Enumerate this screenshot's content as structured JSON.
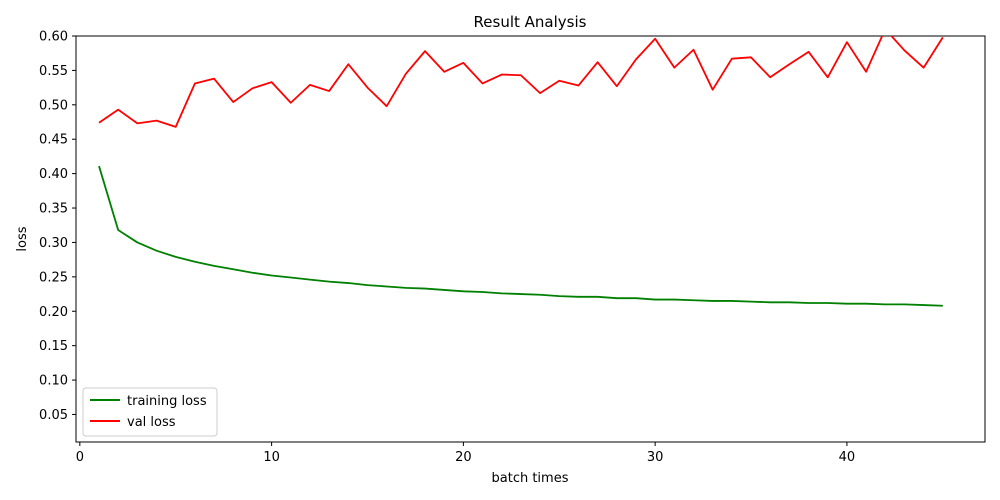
{
  "chart_data": {
    "type": "line",
    "title": "Result Analysis",
    "xlabel": "batch times",
    "ylabel": "loss",
    "xlim": [
      -0.2,
      47.2
    ],
    "ylim": [
      0.01,
      0.6
    ],
    "xticks": [
      0,
      10,
      20,
      30,
      40
    ],
    "xtick_labels": [
      "0",
      "10",
      "20",
      "30",
      "40"
    ],
    "yticks": [
      0.05,
      0.1,
      0.15,
      0.2,
      0.25,
      0.3,
      0.35,
      0.4,
      0.45,
      0.5,
      0.55,
      0.6
    ],
    "ytick_labels": [
      "0.05",
      "0.10",
      "0.15",
      "0.20",
      "0.25",
      "0.30",
      "0.35",
      "0.40",
      "0.45",
      "0.50",
      "0.55",
      "0.60"
    ],
    "grid": false,
    "legend_position": "lower-left",
    "x": [
      1,
      2,
      3,
      4,
      5,
      6,
      7,
      8,
      9,
      10,
      11,
      12,
      13,
      14,
      15,
      16,
      17,
      18,
      19,
      20,
      21,
      22,
      23,
      24,
      25,
      26,
      27,
      28,
      29,
      30,
      31,
      32,
      33,
      34,
      35,
      36,
      37,
      38,
      39,
      40,
      41,
      42,
      43,
      44,
      45
    ],
    "series": [
      {
        "name": "training loss",
        "color": "#008000",
        "values": [
          0.411,
          0.318,
          0.3,
          0.288,
          0.279,
          0.272,
          0.266,
          0.261,
          0.256,
          0.252,
          0.249,
          0.246,
          0.243,
          0.241,
          0.238,
          0.236,
          0.234,
          0.233,
          0.231,
          0.229,
          0.228,
          0.226,
          0.225,
          0.224,
          0.222,
          0.221,
          0.221,
          0.219,
          0.219,
          0.217,
          0.217,
          0.216,
          0.215,
          0.215,
          0.214,
          0.213,
          0.213,
          0.212,
          0.212,
          0.211,
          0.211,
          0.21,
          0.21,
          0.209,
          0.208
        ]
      },
      {
        "name": "val loss",
        "color": "#ff0000",
        "values": [
          0.474,
          0.493,
          0.473,
          0.477,
          0.468,
          0.531,
          0.538,
          0.504,
          0.524,
          0.533,
          0.503,
          0.529,
          0.52,
          0.559,
          0.525,
          0.498,
          0.545,
          0.578,
          0.548,
          0.561,
          0.531,
          0.544,
          0.543,
          0.517,
          0.535,
          0.528,
          0.562,
          0.527,
          0.566,
          0.596,
          0.554,
          0.58,
          0.522,
          0.567,
          0.569,
          0.54,
          0.559,
          0.577,
          0.54,
          0.591,
          0.548,
          0.61,
          0.579,
          0.554,
          0.598
        ]
      }
    ]
  }
}
